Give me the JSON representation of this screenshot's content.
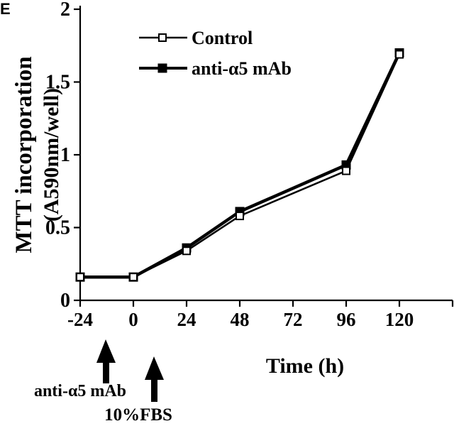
{
  "panel_label": "E",
  "chart_data": {
    "type": "line",
    "title": "",
    "xlabel": "Time (h)",
    "ylabel_line1": "MTT incorporation",
    "ylabel_line2": "(A590nm/well)",
    "x_ticks": [
      "-24",
      "0",
      "24",
      "48",
      "72",
      "96",
      "120"
    ],
    "y_ticks": [
      "0",
      "0.5",
      "1",
      "1.5",
      "2"
    ],
    "xlim": [
      -24,
      144
    ],
    "ylim": [
      0,
      2
    ],
    "legend_position": "top-left",
    "series": [
      {
        "name": "Control",
        "marker": "open-square",
        "color": "#000000",
        "x": [
          -24,
          0,
          24,
          48,
          96,
          120
        ],
        "values": [
          0.16,
          0.16,
          0.34,
          0.58,
          0.89,
          1.69
        ]
      },
      {
        "name": "anti-α5 mAb",
        "marker": "filled-square",
        "color": "#000000",
        "x": [
          -24,
          0,
          24,
          48,
          96,
          120
        ],
        "values": [
          0.16,
          0.16,
          0.36,
          0.61,
          0.93,
          1.7
        ]
      }
    ],
    "annotations": [
      {
        "text": "anti-α5 mAb",
        "x": -24,
        "kind": "arrow-up"
      },
      {
        "text": "10%FBS",
        "x": 0,
        "kind": "arrow-up"
      }
    ]
  }
}
